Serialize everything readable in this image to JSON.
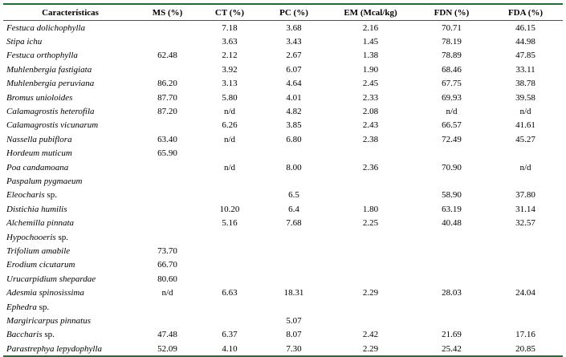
{
  "columns": [
    "Características",
    "MS (%)",
    "CT (%)",
    "PC (%)",
    "EM (Mcal/kg)",
    "FDN (%)",
    "FDA (%)"
  ],
  "rows": [
    {
      "name": "Festuca dolichophylla",
      "suffix": "",
      "ms": "",
      "ct": "7.18",
      "pc": "3.68",
      "em": "2.16",
      "fdn": "70.71",
      "fda": "46.15"
    },
    {
      "name": "Stipa ichu",
      "suffix": "",
      "ms": "",
      "ct": "3.63",
      "pc": "3.43",
      "em": "1.45",
      "fdn": "78.19",
      "fda": "44.98"
    },
    {
      "name": "Festuca orthophylla",
      "suffix": "",
      "ms": "62.48",
      "ct": "2.12",
      "pc": "2.67",
      "em": "1.38",
      "fdn": "78.89",
      "fda": "47.85"
    },
    {
      "name": "Muhlenbergia fastigiata",
      "suffix": "",
      "ms": "",
      "ct": "3.92",
      "pc": "6.07",
      "em": "1.90",
      "fdn": "68.46",
      "fda": "33.11"
    },
    {
      "name": "Muhlenbergia peruviana",
      "suffix": "",
      "ms": "86.20",
      "ct": "3.13",
      "pc": "4.64",
      "em": "2.45",
      "fdn": "67.75",
      "fda": "38.78"
    },
    {
      "name": "Bromus unioloides",
      "suffix": "",
      "ms": "87.70",
      "ct": "5.80",
      "pc": "4.01",
      "em": "2.33",
      "fdn": "69.93",
      "fda": "39.58"
    },
    {
      "name": "Calamagrostis heterofila",
      "suffix": "",
      "ms": "87.20",
      "ct": "n/d",
      "pc": "4.82",
      "em": "2.08",
      "fdn": "n/d",
      "fda": "n/d"
    },
    {
      "name": "Calamagrostis vicunarum",
      "suffix": "",
      "ms": "",
      "ct": "6.26",
      "pc": "3.85",
      "em": "2.43",
      "fdn": "66.57",
      "fda": "41.61"
    },
    {
      "name": "Nassella pubiflora",
      "suffix": "",
      "ms": "63.40",
      "ct": "n/d",
      "pc": "6.80",
      "em": "2.38",
      "fdn": "72.49",
      "fda": "45.27"
    },
    {
      "name": "Hordeum muticum",
      "suffix": "",
      "ms": "65.90",
      "ct": "",
      "pc": "",
      "em": "",
      "fdn": "",
      "fda": ""
    },
    {
      "name": "Poa candamoana",
      "suffix": "",
      "ms": "",
      "ct": "n/d",
      "pc": "8.00",
      "em": "2.36",
      "fdn": "70.90",
      "fda": "n/d"
    },
    {
      "name": "Paspalum pygmaeum",
      "suffix": "",
      "ms": "",
      "ct": "",
      "pc": "",
      "em": "",
      "fdn": "",
      "fda": ""
    },
    {
      "name": "Eleocharis",
      "suffix": " sp.",
      "ms": "",
      "ct": "",
      "pc": "6.5",
      "em": "",
      "fdn": "58.90",
      "fda": "37.80"
    },
    {
      "name": "Distichia humilis",
      "suffix": "",
      "ms": "",
      "ct": "10.20",
      "pc": "6.4",
      "em": "1.80",
      "fdn": "63.19",
      "fda": "31.14"
    },
    {
      "name": "Alchemilla pinnata",
      "suffix": "",
      "ms": "",
      "ct": "5.16",
      "pc": "7.68",
      "em": "2.25",
      "fdn": "40.48",
      "fda": "32.57"
    },
    {
      "name": "Hypochooeris",
      "suffix": " sp.",
      "ms": "",
      "ct": "",
      "pc": "",
      "em": "",
      "fdn": "",
      "fda": ""
    },
    {
      "name": "Trifolium amabile",
      "suffix": "",
      "ms": "73.70",
      "ct": "",
      "pc": "",
      "em": "",
      "fdn": "",
      "fda": ""
    },
    {
      "name": "Erodium cicutarum",
      "suffix": "",
      "ms": "66.70",
      "ct": "",
      "pc": "",
      "em": "",
      "fdn": "",
      "fda": ""
    },
    {
      "name": "Urucarpidium shepardae",
      "suffix": "",
      "ms": "80.60",
      "ct": "",
      "pc": "",
      "em": "",
      "fdn": "",
      "fda": ""
    },
    {
      "name": "Adesmia spinosissima",
      "suffix": "",
      "ms": "n/d",
      "ct": "6.63",
      "pc": "18.31",
      "em": "2.29",
      "fdn": "28.03",
      "fda": "24.04"
    },
    {
      "name": "Ephedra",
      "suffix": " sp.",
      "ms": "",
      "ct": "",
      "pc": "",
      "em": "",
      "fdn": "",
      "fda": ""
    },
    {
      "name": "Margiricarpus pinnatus",
      "suffix": "",
      "ms": "",
      "ct": "",
      "pc": "5.07",
      "em": "",
      "fdn": "",
      "fda": ""
    },
    {
      "name": "Baccharis",
      "suffix": " sp.",
      "ms": "47.48",
      "ct": "6.37",
      "pc": "8.07",
      "em": "2.42",
      "fdn": "21.69",
      "fda": "17.16"
    },
    {
      "name": "Parastrephya lepydophylla",
      "suffix": "",
      "ms": "52.09",
      "ct": "4.10",
      "pc": "7.30",
      "em": "2.29",
      "fdn": "25.42",
      "fda": "20.85"
    }
  ],
  "colors": {
    "rule": "#1f6f2e",
    "text": "#000000",
    "background": "#ffffff"
  }
}
